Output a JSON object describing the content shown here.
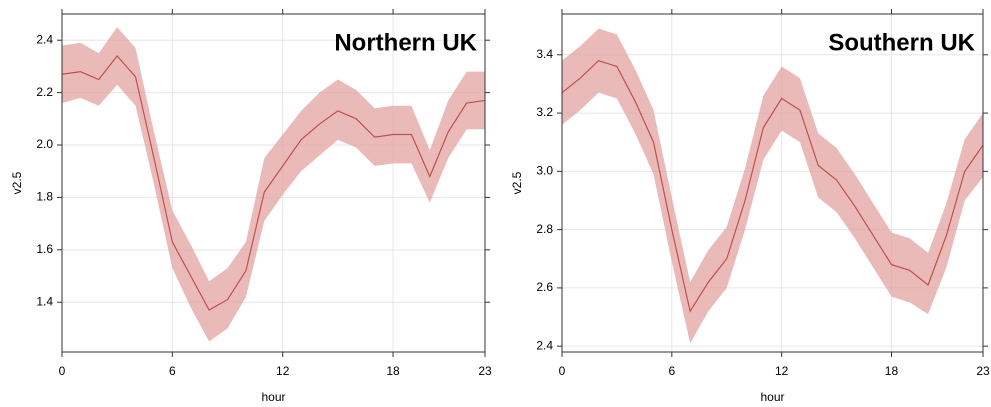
{
  "chart_data": [
    {
      "type": "line",
      "title": "Northern UK",
      "x_label": "hour",
      "y_label": "v2.5",
      "x": [
        0,
        1,
        2,
        3,
        4,
        5,
        6,
        7,
        8,
        9,
        10,
        11,
        12,
        13,
        14,
        15,
        16,
        17,
        18,
        19,
        20,
        21,
        22,
        23
      ],
      "values": [
        2.27,
        2.28,
        2.25,
        2.34,
        2.26,
        1.95,
        1.63,
        1.5,
        1.37,
        1.41,
        1.52,
        1.82,
        1.92,
        2.02,
        2.08,
        2.13,
        2.1,
        2.03,
        2.04,
        2.04,
        1.88,
        2.05,
        2.16,
        2.17
      ],
      "lower": [
        2.16,
        2.18,
        2.15,
        2.23,
        2.15,
        1.85,
        1.53,
        1.38,
        1.25,
        1.3,
        1.42,
        1.71,
        1.81,
        1.9,
        1.96,
        2.02,
        1.99,
        1.92,
        1.93,
        1.93,
        1.78,
        1.95,
        2.06,
        2.06
      ],
      "upper": [
        2.38,
        2.39,
        2.35,
        2.45,
        2.37,
        2.05,
        1.75,
        1.62,
        1.48,
        1.53,
        1.63,
        1.95,
        2.04,
        2.13,
        2.2,
        2.25,
        2.21,
        2.14,
        2.15,
        2.15,
        1.98,
        2.17,
        2.28,
        2.28
      ],
      "color": "#c0504d",
      "band_color": "#e3a3a1",
      "xlim": [
        0,
        23
      ],
      "xticks": [
        0,
        6,
        12,
        18,
        23
      ],
      "ylim": [
        1.21,
        2.5
      ],
      "yticks": [
        1.4,
        1.6,
        1.8,
        {
          "value": 2,
          "label": "2.0"
        },
        2.2,
        2.4
      ],
      "grid": true
    },
    {
      "type": "line",
      "title": "Southern UK",
      "x_label": "hour",
      "y_label": "v2.5",
      "x": [
        0,
        1,
        2,
        3,
        4,
        5,
        6,
        7,
        8,
        9,
        10,
        11,
        12,
        13,
        14,
        15,
        16,
        17,
        18,
        19,
        20,
        21,
        22,
        23
      ],
      "values": [
        3.27,
        3.32,
        3.38,
        3.36,
        3.24,
        3.1,
        2.8,
        2.52,
        2.62,
        2.7,
        2.9,
        3.15,
        3.25,
        3.21,
        3.02,
        2.97,
        2.88,
        2.78,
        2.68,
        2.66,
        2.61,
        2.78,
        3.0,
        3.09
      ],
      "lower": [
        3.16,
        3.21,
        3.27,
        3.25,
        3.13,
        2.99,
        2.69,
        2.41,
        2.52,
        2.6,
        2.8,
        3.04,
        3.14,
        3.1,
        2.91,
        2.86,
        2.77,
        2.67,
        2.57,
        2.55,
        2.51,
        2.67,
        2.9,
        2.98
      ],
      "upper": [
        3.38,
        3.43,
        3.49,
        3.47,
        3.35,
        3.21,
        2.91,
        2.62,
        2.73,
        2.81,
        3.01,
        3.26,
        3.36,
        3.32,
        3.13,
        3.08,
        2.99,
        2.89,
        2.79,
        2.77,
        2.72,
        2.89,
        3.11,
        3.2
      ],
      "color": "#c0504d",
      "band_color": "#e3a3a1",
      "xlim": [
        0,
        23
      ],
      "xticks": [
        0,
        6,
        12,
        18,
        23
      ],
      "ylim": [
        2.38,
        3.54
      ],
      "yticks": [
        2.4,
        2.6,
        2.8,
        {
          "value": 3,
          "label": "3.0"
        },
        3.2,
        3.4
      ],
      "grid": true
    }
  ]
}
